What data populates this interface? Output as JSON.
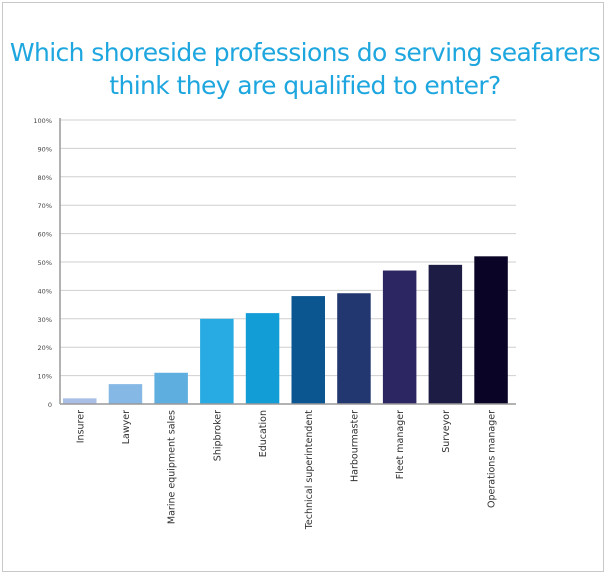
{
  "chart_data": {
    "type": "bar",
    "title": "Which shoreside professions  do serving seafarers think they are qualified to enter?",
    "xlabel": "",
    "ylabel": "",
    "ylim": [
      0,
      100
    ],
    "grid": true,
    "yticks": [
      "0",
      "10%",
      "20%",
      "30%",
      "40%",
      "50%",
      "60%",
      "70%",
      "80%",
      "90%",
      "100%"
    ],
    "categories": [
      "Insurer",
      "Lawyer",
      "Marine equipment sales",
      "Shipbroker",
      "Education",
      "Technical superintendent",
      "Harbourmaster",
      "Fleet manager",
      "Surveyor",
      "Operations manager"
    ],
    "values": [
      2,
      7,
      11,
      30,
      32,
      38,
      39,
      47,
      49,
      52
    ],
    "colors": [
      "#a9bfe6",
      "#86b8e5",
      "#5eaee0",
      "#27abe2",
      "#129dd7",
      "#0b5591",
      "#22376f",
      "#2c2762",
      "#1d1c44",
      "#0a0427"
    ]
  }
}
